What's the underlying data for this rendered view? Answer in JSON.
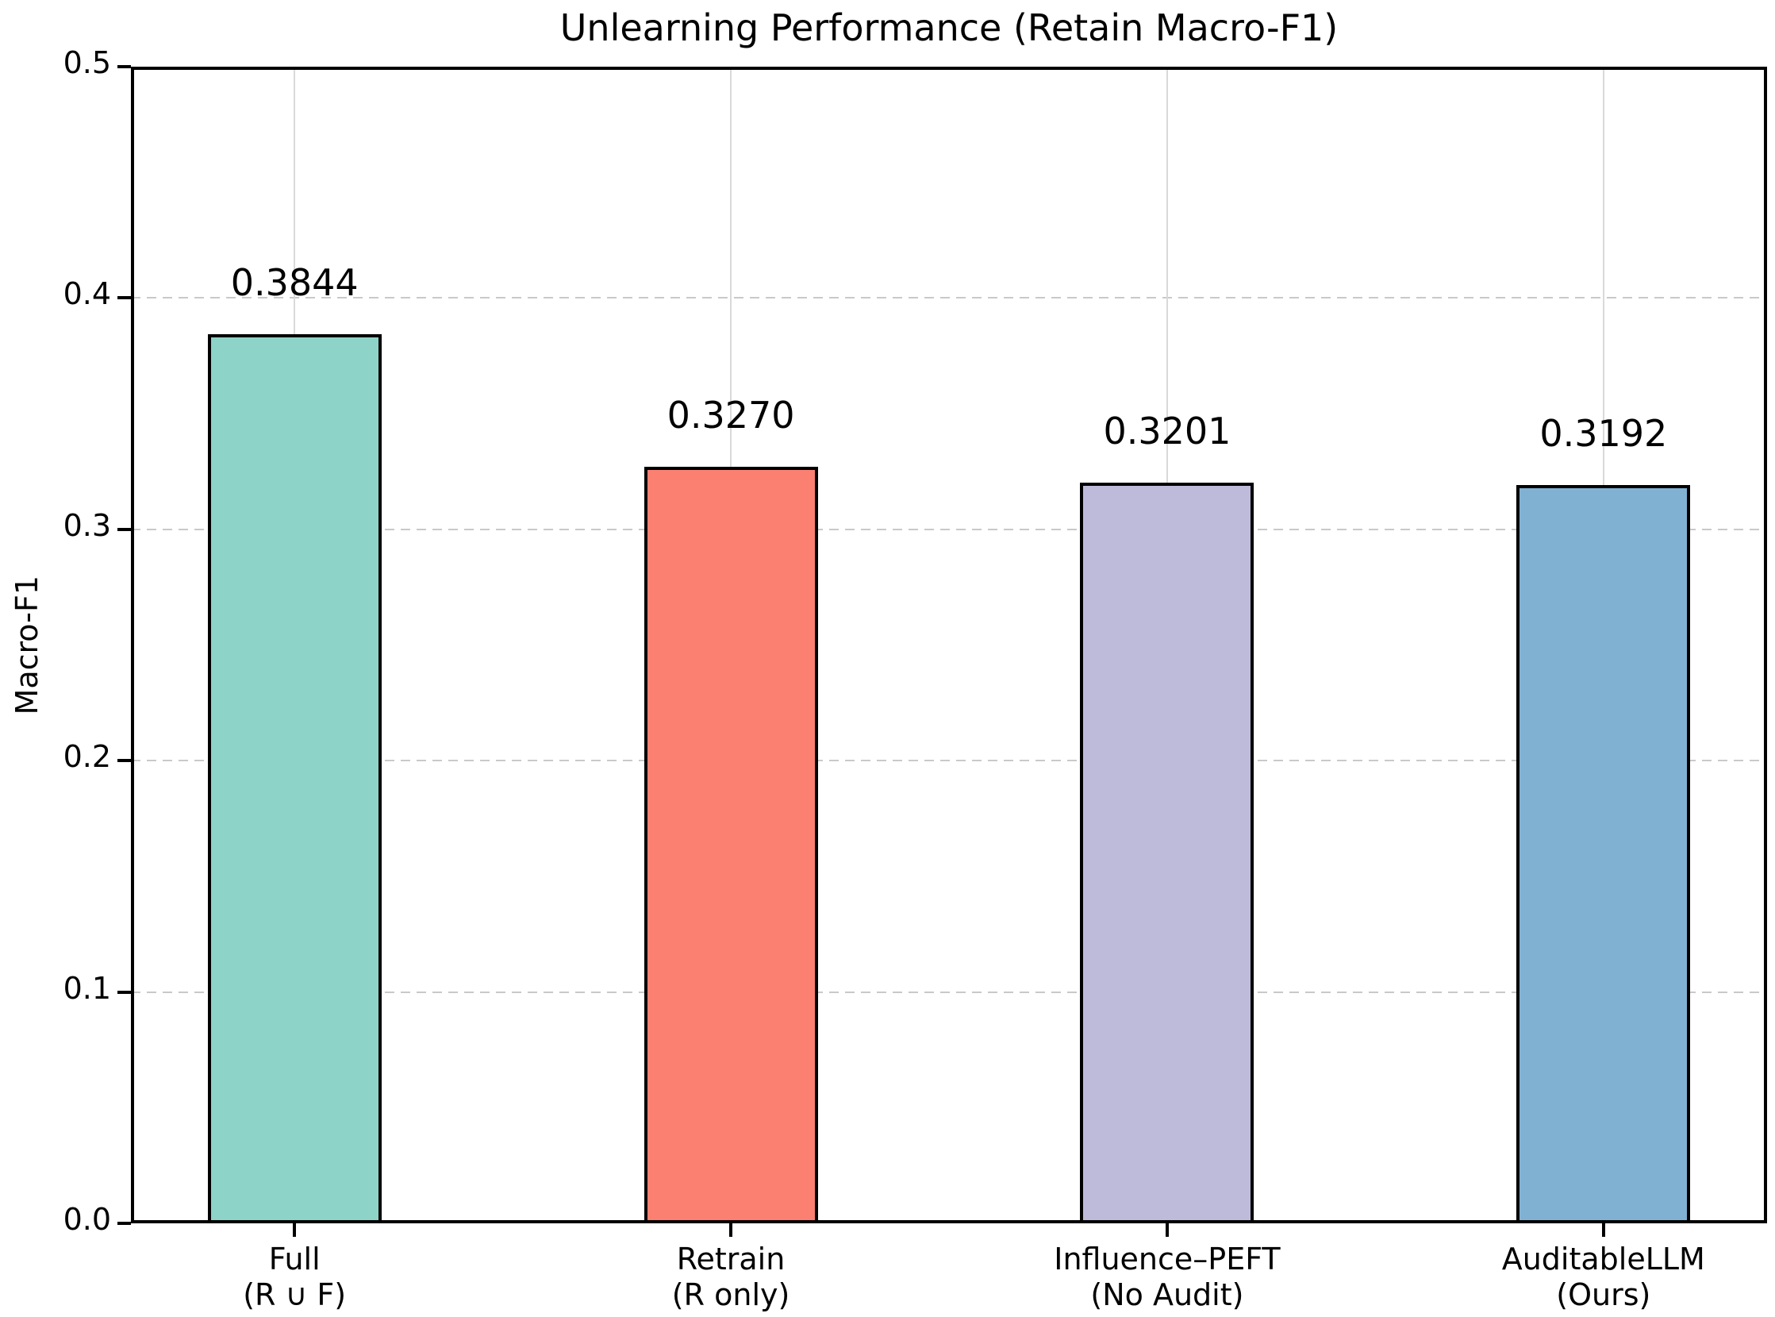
{
  "chart_data": {
    "type": "bar",
    "title": "Unlearning Performance (Retain Macro-F1)",
    "ylabel": "Macro-F1",
    "categories": [
      "Full\n(R ∪ F)",
      "Retrain\n(R only)",
      "Influence–PEFT\n(No Audit)",
      "AuditableLLM\n(Ours)"
    ],
    "values": [
      0.3844,
      0.327,
      0.3201,
      0.3192
    ],
    "value_labels": [
      "0.3844",
      "0.3270",
      "0.3201",
      "0.3192"
    ],
    "bar_colors": [
      "#8dd3c7",
      "#fb8072",
      "#bebada",
      "#80b1d3"
    ],
    "bar_edge_color": "#000000",
    "ylim": [
      0.0,
      0.5
    ],
    "ytick_labels": [
      "0.0",
      "0.1",
      "0.2",
      "0.3",
      "0.4",
      "0.5"
    ],
    "grid": {
      "horizontal_style": "dashed",
      "horizontal_color": "#c9c9c9",
      "vertical_style": "solid",
      "vertical_color": "#d9d9d9"
    },
    "legend_position": "none",
    "background_color": "#ffffff",
    "text_color": "#000000"
  }
}
